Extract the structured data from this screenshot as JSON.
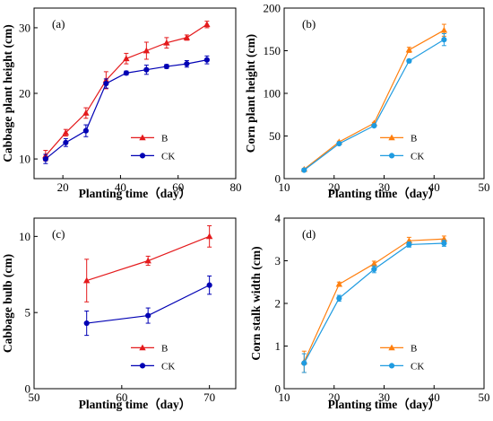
{
  "chart_data": [
    {
      "panel": "(a)",
      "type": "line",
      "xlabel": "Planting time（day）",
      "ylabel": "Cabbage plant height (cm)",
      "xlim": [
        10,
        80
      ],
      "ylim": [
        7,
        33
      ],
      "xticks": [
        20,
        40,
        60,
        80
      ],
      "yticks": [
        10,
        20,
        30
      ],
      "legend_position": "lower-right",
      "series": [
        {
          "name": "B",
          "color": "#e41a1c",
          "marker": "triangle",
          "x": [
            14,
            21,
            28,
            35,
            42,
            49,
            56,
            63,
            70
          ],
          "y": [
            10.5,
            14.0,
            17.0,
            22.0,
            25.3,
            26.5,
            27.7,
            28.5,
            30.5
          ],
          "err": [
            0.8,
            0.5,
            0.8,
            1.3,
            0.8,
            1.3,
            0.8,
            0.4,
            0.5
          ]
        },
        {
          "name": "CK",
          "color": "#0000b4",
          "marker": "circle",
          "x": [
            14,
            21,
            28,
            35,
            42,
            49,
            56,
            63,
            70
          ],
          "y": [
            10.0,
            12.5,
            14.3,
            21.5,
            23.1,
            23.6,
            24.1,
            24.5,
            25.1
          ],
          "err": [
            0.7,
            0.6,
            0.9,
            0.7,
            0.3,
            0.7,
            0.3,
            0.5,
            0.6
          ]
        }
      ]
    },
    {
      "panel": "(b)",
      "type": "line",
      "xlabel": "Planting time（day）",
      "ylabel": "Corn plant height (cm)",
      "xlim": [
        10,
        50
      ],
      "ylim": [
        0,
        200
      ],
      "xticks": [
        10,
        20,
        30,
        40,
        50
      ],
      "yticks": [
        0,
        50,
        100,
        150,
        200
      ],
      "legend_position": "lower-right",
      "series": [
        {
          "name": "B",
          "color": "#ff7f0e",
          "marker": "triangle",
          "x": [
            14,
            21,
            28,
            35,
            42
          ],
          "y": [
            11,
            43,
            65,
            151,
            174
          ],
          "err": [
            1,
            1,
            1,
            3,
            7
          ]
        },
        {
          "name": "CK",
          "color": "#1f9be0",
          "marker": "circle",
          "x": [
            14,
            21,
            28,
            35,
            42
          ],
          "y": [
            10,
            41,
            62,
            138,
            163
          ],
          "err": [
            1,
            1,
            1,
            2,
            7
          ]
        }
      ]
    },
    {
      "panel": "(c)",
      "type": "line",
      "xlabel": "Planting time（day）",
      "ylabel": "Cabbage bulb (cm)",
      "xlim": [
        50,
        73
      ],
      "ylim": [
        0,
        11.2
      ],
      "xticks": [
        50,
        60,
        70
      ],
      "yticks": [
        0,
        5,
        10
      ],
      "legend_position": "lower-right",
      "series": [
        {
          "name": "B",
          "color": "#e41a1c",
          "marker": "triangle",
          "x": [
            56,
            63,
            70
          ],
          "y": [
            7.1,
            8.4,
            10.0
          ],
          "err": [
            1.4,
            0.3,
            0.7
          ]
        },
        {
          "name": "CK",
          "color": "#0000b4",
          "marker": "circle",
          "x": [
            56,
            63,
            70
          ],
          "y": [
            4.3,
            4.8,
            6.8
          ],
          "err": [
            0.8,
            0.5,
            0.6
          ]
        }
      ]
    },
    {
      "panel": "(d)",
      "type": "line",
      "xlabel": "Planting time（day）",
      "ylabel": "Corn stalk width (cm)",
      "xlim": [
        10,
        50
      ],
      "ylim": [
        0,
        4
      ],
      "xticks": [
        10,
        20,
        30,
        40,
        50
      ],
      "yticks": [
        0,
        1,
        2,
        3,
        4
      ],
      "legend_position": "lower-right",
      "series": [
        {
          "name": "B",
          "color": "#ff7f0e",
          "marker": "triangle",
          "x": [
            14,
            21,
            28,
            35,
            42
          ],
          "y": [
            0.63,
            2.45,
            2.93,
            3.47,
            3.51
          ],
          "err": [
            0.25,
            0.05,
            0.06,
            0.08,
            0.07
          ]
        },
        {
          "name": "CK",
          "color": "#1f9be0",
          "marker": "circle",
          "x": [
            14,
            21,
            28,
            35,
            42
          ],
          "y": [
            0.6,
            2.12,
            2.8,
            3.38,
            3.41
          ],
          "err": [
            0.22,
            0.07,
            0.08,
            0.06,
            0.07
          ]
        }
      ]
    }
  ]
}
